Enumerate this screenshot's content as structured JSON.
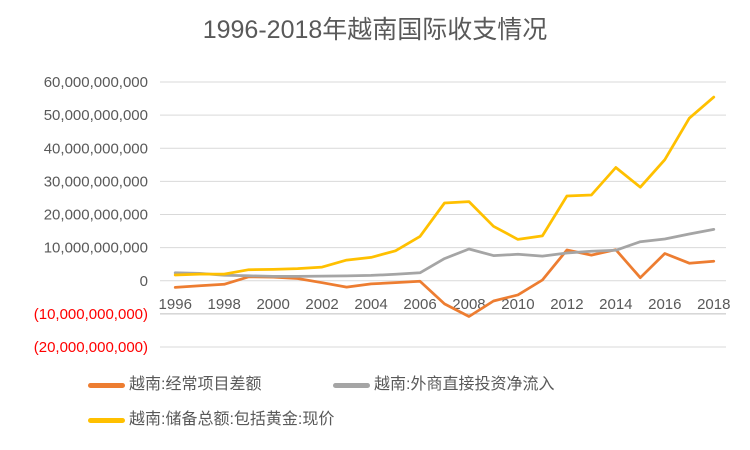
{
  "title": "1996-2018年越南国际收支情况",
  "colors": {
    "orange": "#ED7D31",
    "gray": "#A5A5A5",
    "gold": "#FFC000",
    "gridline": "#D9D9D9",
    "axis_line": "#BFBFBF",
    "label_gray": "#595959",
    "negative_red": "#FF0000"
  },
  "y_axis": {
    "tick_labels": [
      "60,000,000,000",
      "50,000,000,000",
      "40,000,000,000",
      "30,000,000,000",
      "20,000,000,000",
      "10,000,000,000",
      "0",
      "(10,000,000,000)",
      "(20,000,000,000)"
    ],
    "tick_values": [
      60000000000,
      50000000000,
      40000000000,
      30000000000,
      20000000000,
      10000000000,
      0,
      -10000000000,
      -20000000000
    ]
  },
  "x_axis": {
    "tick_labels": [
      "1996",
      "1998",
      "2000",
      "2002",
      "2004",
      "2006",
      "2008",
      "2010",
      "2012",
      "2014",
      "2016",
      "2018"
    ]
  },
  "legend": [
    {
      "label": "越南:经常项目差额",
      "color": "#ED7D31"
    },
    {
      "label": "越南:外商直接投资净流入",
      "color": "#A5A5A5"
    },
    {
      "label": "越南:储备总额:包括黄金:现价",
      "color": "#FFC000"
    }
  ],
  "chart_data": {
    "type": "line",
    "title": "1996-2018年越南国际收支情况",
    "x": [
      1996,
      1997,
      1998,
      1999,
      2000,
      2001,
      2002,
      2003,
      2004,
      2005,
      2006,
      2007,
      2008,
      2009,
      2010,
      2011,
      2012,
      2013,
      2014,
      2015,
      2016,
      2017,
      2018
    ],
    "series": [
      {
        "name": "越南:经常项目差额",
        "color": "#ED7D31",
        "values": [
          -2020000000,
          -1530000000,
          -1070000000,
          1180000000,
          1110000000,
          680000000,
          -600000000,
          -1930000000,
          -960000000,
          -560000000,
          -160000000,
          -6990000000,
          -10790000000,
          -6120000000,
          -4280000000,
          240000000,
          9270000000,
          7740000000,
          9360000000,
          910000000,
          8240000000,
          5300000000,
          5900000000
        ]
      },
      {
        "name": "越南:外商直接投资净流入",
        "color": "#A5A5A5",
        "values": [
          2400000000,
          2220000000,
          1670000000,
          1480000000,
          1300000000,
          1300000000,
          1400000000,
          1450000000,
          1610000000,
          1950000000,
          2400000000,
          6700000000,
          9580000000,
          7600000000,
          8000000000,
          7430000000,
          8370000000,
          8900000000,
          9200000000,
          11800000000,
          12600000000,
          14100000000,
          15500000000
        ]
      },
      {
        "name": "越南:储备总额:包括黄金:现价",
        "color": "#FFC000",
        "values": [
          1740000000,
          2000000000,
          2000000000,
          3330000000,
          3420000000,
          3670000000,
          4120000000,
          6220000000,
          7040000000,
          9050000000,
          13380000000,
          23480000000,
          23890000000,
          16450000000,
          12470000000,
          13540000000,
          25570000000,
          25890000000,
          34190000000,
          28250000000,
          36530000000,
          49080000000,
          55450000000
        ]
      }
    ],
    "ylim": [
      -20000000000,
      60000000000
    ],
    "xlabel": "",
    "ylabel": "",
    "grid": true,
    "legend_position": "bottom"
  }
}
